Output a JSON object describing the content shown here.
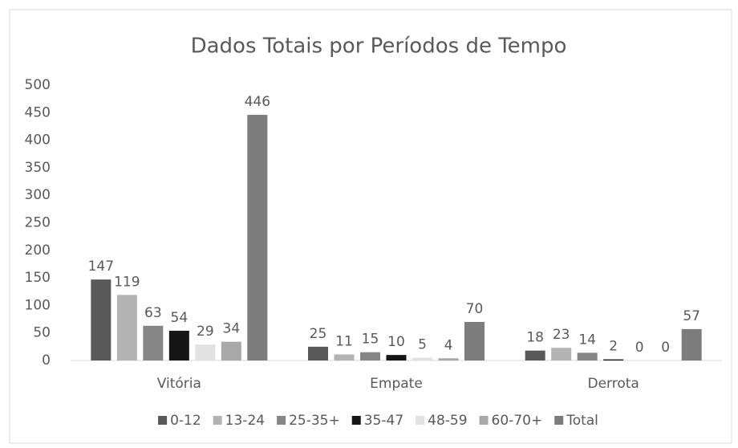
{
  "chart_data": {
    "type": "bar",
    "title": "Dados Totais por Períodos de Tempo",
    "categories": [
      "Vitória",
      "Empate",
      "Derrota"
    ],
    "series": [
      {
        "name": "0-12",
        "color": "#595959",
        "values": [
          147,
          25,
          18
        ]
      },
      {
        "name": "13-24",
        "color": "#b3b3b3",
        "values": [
          119,
          11,
          23
        ]
      },
      {
        "name": "25-35+",
        "color": "#868686",
        "values": [
          63,
          15,
          14
        ]
      },
      {
        "name": "35-47",
        "color": "#161616",
        "values": [
          54,
          10,
          2
        ]
      },
      {
        "name": "48-59",
        "color": "#e2e2e2",
        "values": [
          29,
          5,
          0
        ]
      },
      {
        "name": "60-70+",
        "color": "#a8a8a8",
        "values": [
          34,
          4,
          0
        ]
      },
      {
        "name": "Total",
        "color": "#7c7c7c",
        "values": [
          446,
          70,
          57
        ]
      }
    ],
    "ylim": [
      0,
      500
    ],
    "yticks": [
      0,
      50,
      100,
      150,
      200,
      250,
      300,
      350,
      400,
      450,
      500
    ],
    "grid": false,
    "legend": "bottom"
  }
}
